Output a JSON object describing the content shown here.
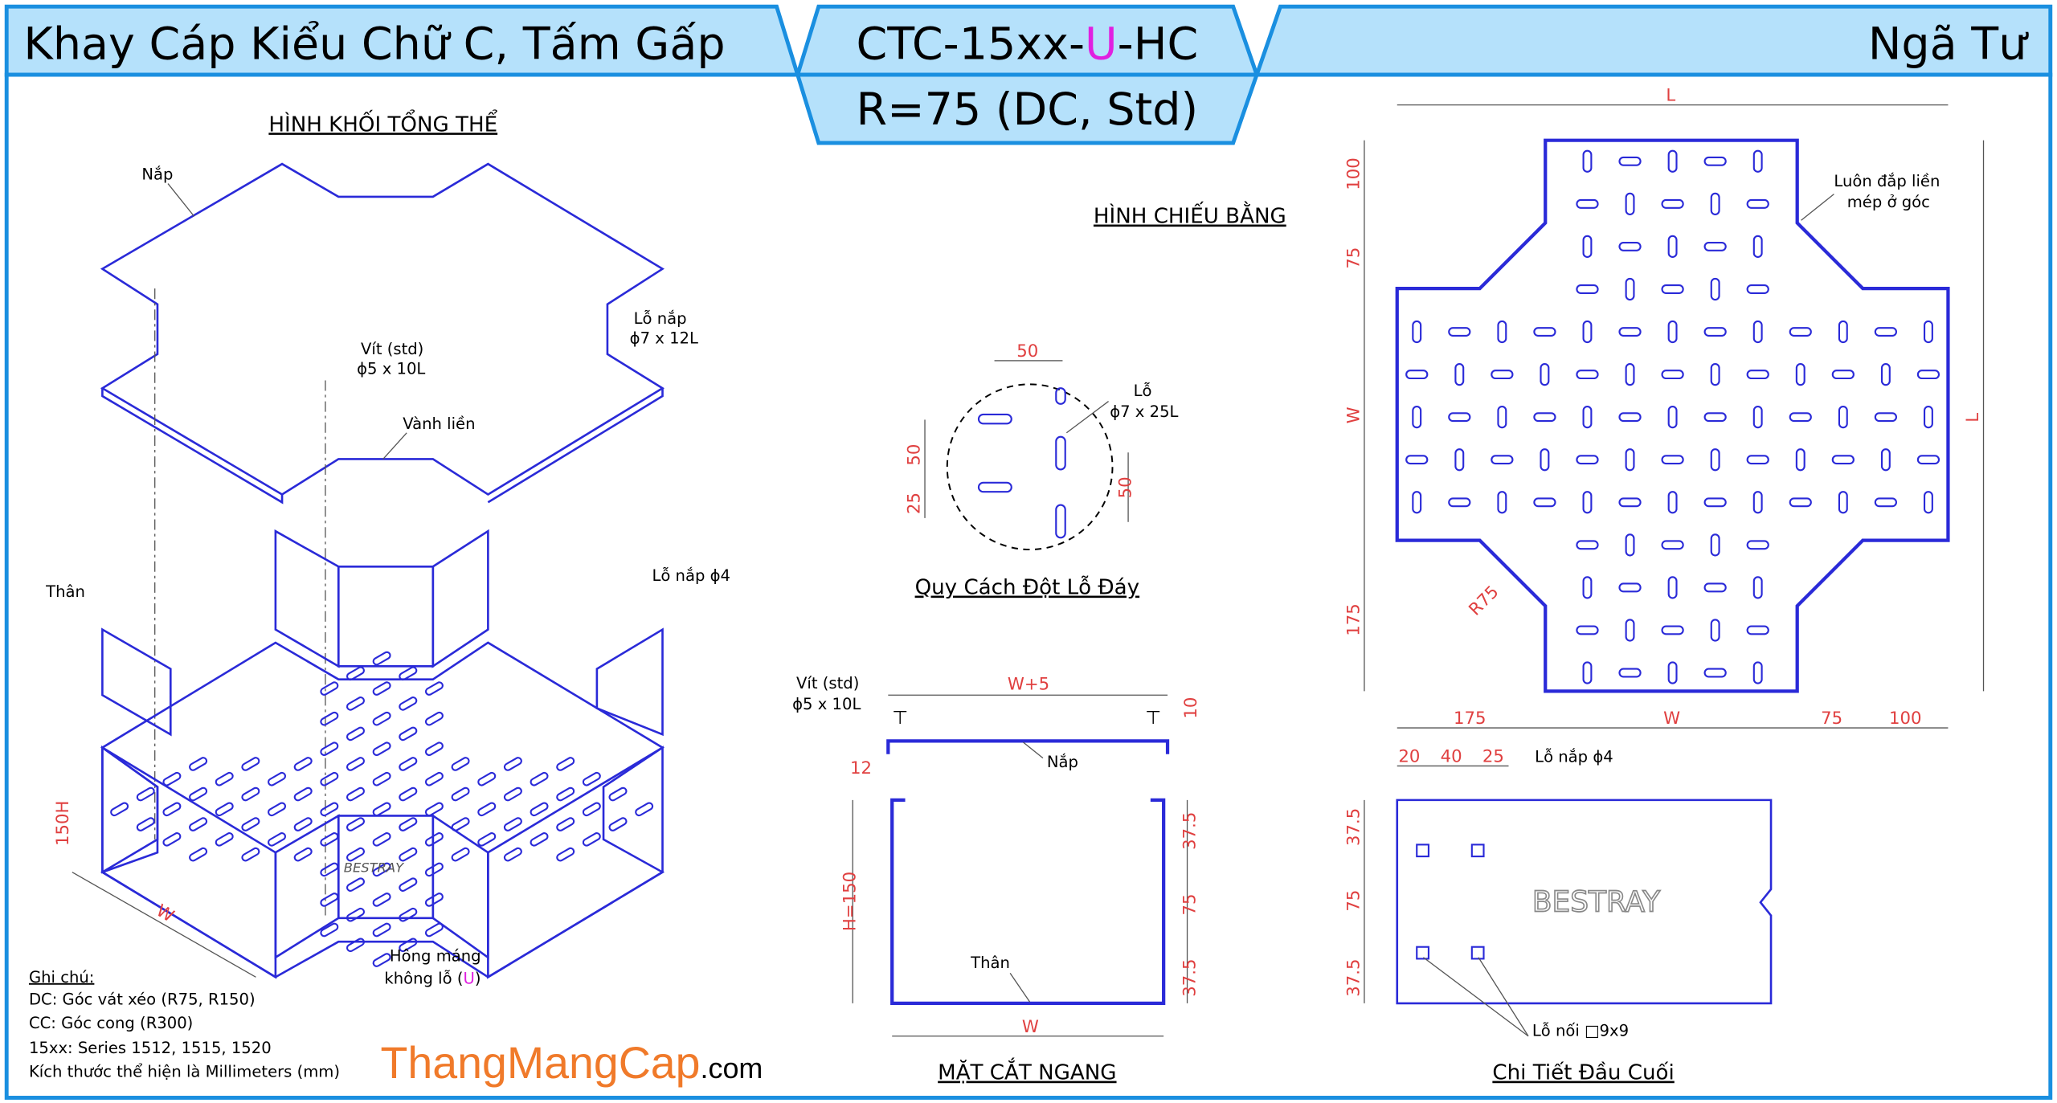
{
  "header": {
    "left_title": "Khay Cáp Kiểu Chữ C, Tấm Gấp",
    "code_prefix": "CTC-15xx-",
    "code_u": "U",
    "code_suffix": "-HC",
    "subcode": "R=75 (DC, Std)",
    "right_title": "Ngã Tư"
  },
  "colors": {
    "header_fill": "#b5e1fb",
    "frame": "#1a8fe0",
    "drawing": "#2a2ad8",
    "dimension_text": "#e04040",
    "accent_u": "#e020e0",
    "logo": "#f07a2a"
  },
  "isometric": {
    "heading": "HÌNH KHỐI TỔNG THỂ",
    "lid": "Nắp",
    "lid_hole": "Lỗ nắp",
    "lid_hole_size": "ϕ7 x 12L",
    "screw": "Vít (std)",
    "screw_size": "ϕ5 x 10L",
    "rim": "Vành liền",
    "body": "Thân",
    "lid_hole2": "Lỗ nắp ϕ4",
    "height": "150H",
    "width": "W",
    "side": "Hông máng",
    "side2_prefix": "không lỗ (",
    "side2_u": "U",
    "side2_suffix": ")",
    "brand": "BESTRAY"
  },
  "notes": {
    "title": "Ghi chú:",
    "lines": [
      "DC: Góc vát xéo (R75, R150)",
      "CC: Góc cong (R300)",
      "15xx: Series 1512, 1515, 1520",
      "Kích thước thể hiện là Millimeters (mm)"
    ]
  },
  "logo": {
    "main": "ThangMangCap",
    "dot": ".",
    "suffix": "com"
  },
  "punch": {
    "heading": "Quy Cách Đột Lỗ Đáy",
    "hole": "Lỗ",
    "hole_size": "ϕ7 x 25L",
    "dim_top": "50",
    "dim_left1": "50",
    "dim_left2": "25",
    "dim_right": "50"
  },
  "section": {
    "heading": "MẶT CẮT NGANG",
    "screw": "Vít (std)",
    "screw_size": "ϕ5 x 10L",
    "width_top": "W+5",
    "lid": "Nắp",
    "body": "Thân",
    "gap": "12",
    "lid_gap": "10",
    "height": "H=150",
    "d1": "37.5",
    "d2": "75",
    "d3": "37.5",
    "width": "W"
  },
  "plan": {
    "heading": "HÌNH CHIẾU BẰNG",
    "note1": "Luôn đắp liền",
    "note2": "mép ở góc",
    "L_top": "L",
    "L_right": "L",
    "W_left": "W",
    "W_bottom": "W",
    "d100_left": "100",
    "d75_left": "75",
    "d175_left": "175",
    "d175_bottom": "175",
    "d75_bottom": "75",
    "d100_bottom": "100",
    "radius": "R75"
  },
  "end_detail": {
    "heading": "Chi Tiết Đầu Cuối",
    "d20": "20",
    "d40": "40",
    "d25": "25",
    "lid_hole": "Lỗ nắp ϕ4",
    "v1": "37.5",
    "v2": "75",
    "v3": "37.5",
    "joint_hole": "Lỗ nối □9x9",
    "brand": "BESTRAY"
  }
}
